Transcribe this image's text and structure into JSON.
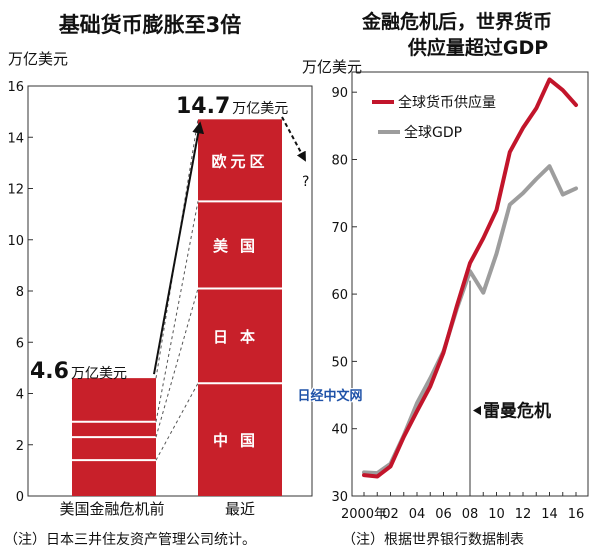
{
  "logo": "日经中文网",
  "footnote_left": "（注）日本三井住友资产管理公司统计。",
  "footnote_right": "（注）根据世界银行数据制表",
  "colors": {
    "bar": "#c8202a",
    "supply_line": "#c2152b",
    "gdp_line": "#9d9d9d",
    "axis": "#333333"
  },
  "chart_data": [
    {
      "type": "bar",
      "title": "基础货币膨胀至3倍",
      "ylabel": "万亿美元",
      "ylim": [
        0,
        16
      ],
      "yticks": [
        "0",
        "2",
        "4",
        "6",
        "8",
        "10",
        "12",
        "14",
        "16"
      ],
      "categories": [
        "美国金融危机前",
        "最近"
      ],
      "values": [
        4.6,
        14.7
      ],
      "value_labels": [
        {
          "number": "4.6",
          "unit": "万亿美元"
        },
        {
          "number": "14.7",
          "unit": "万亿美元"
        }
      ],
      "stack_segments": [
        {
          "label": "中国",
          "from": 0,
          "to": 4.4
        },
        {
          "label": "日本",
          "from": 4.4,
          "to": 8.1
        },
        {
          "label": "美国",
          "from": 8.1,
          "to": 11.5
        },
        {
          "label": "欧元区",
          "from": 11.5,
          "to": 14.7
        }
      ],
      "pre_crisis_dividers": [
        1.4,
        2.3,
        2.9
      ],
      "unknown_mark": "?"
    },
    {
      "type": "line",
      "title": "金融危机后，世界货币供应量超过GDP",
      "title_lines": [
        "金融危机后，世界货币",
        "供应量超过GDP"
      ],
      "ylabel": "万亿美元",
      "ylim": [
        30,
        93
      ],
      "yticks": [
        "30",
        "40",
        "50",
        "60",
        "70",
        "80",
        "90"
      ],
      "x": [
        2000,
        2001,
        2002,
        2003,
        2004,
        2005,
        2006,
        2007,
        2008,
        2009,
        2010,
        2011,
        2012,
        2013,
        2014,
        2015,
        2016
      ],
      "xticks": [
        "2000年",
        "02",
        "04",
        "06",
        "08",
        "10",
        "12",
        "14",
        "16"
      ],
      "series": [
        {
          "name": "全球货币供应量",
          "values": [
            33.1,
            32.9,
            34.4,
            38.8,
            42.6,
            46.3,
            51.3,
            58.2,
            64.6,
            68.3,
            72.5,
            81.1,
            84.7,
            87.6,
            91.9,
            90.3,
            88.1
          ]
        },
        {
          "name": "全球GDP",
          "values": [
            33.5,
            33.4,
            34.8,
            39.0,
            43.8,
            47.5,
            51.5,
            57.8,
            63.4,
            60.2,
            66.0,
            73.3,
            75.0,
            77.1,
            79.0,
            74.8,
            75.7
          ]
        }
      ],
      "annotation": {
        "text": "雷曼危机",
        "x": 2008
      }
    }
  ]
}
